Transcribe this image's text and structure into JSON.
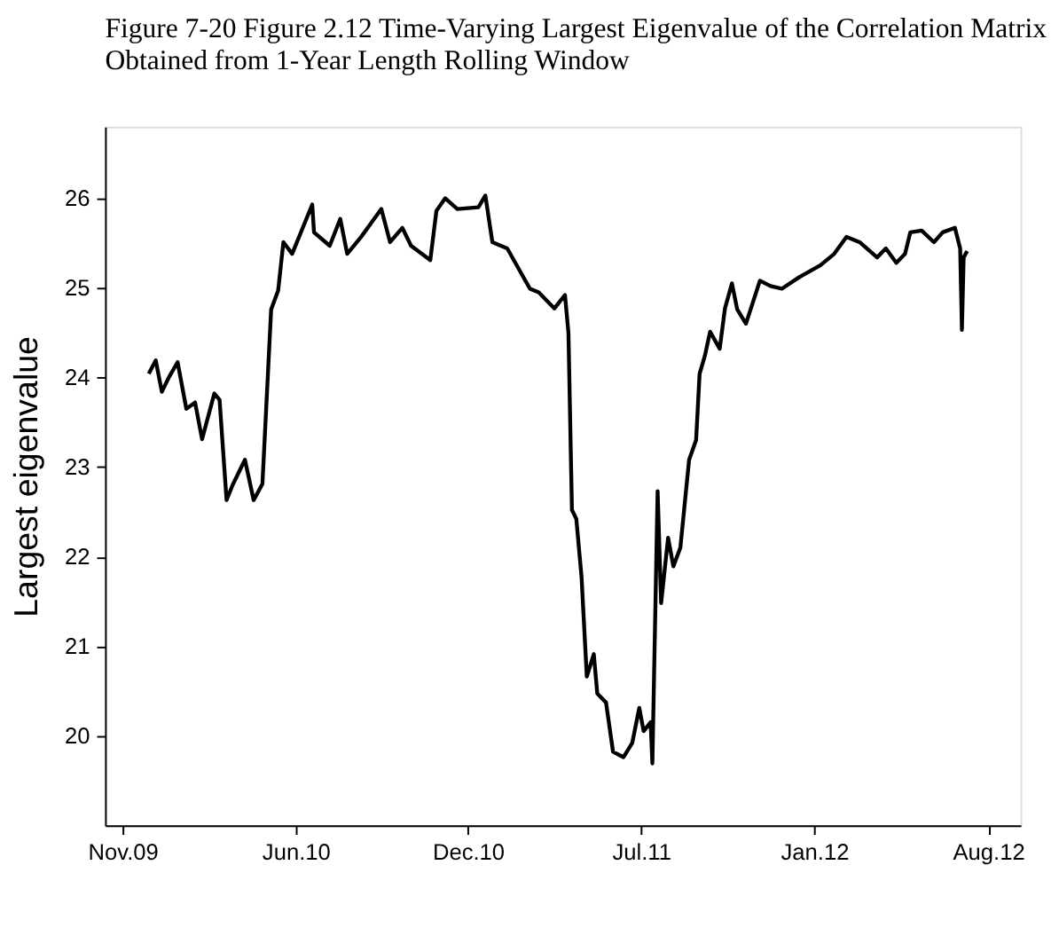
{
  "chart_data": {
    "type": "line",
    "title": [
      "Figure 7-20 Figure 2.12 Time-Varying Largest Eigenvalue of the Correlation Matrix",
      "Obtained from 1-Year Length Rolling Window"
    ],
    "ylabel": "Largest eigenvalue",
    "xlim": [
      "2009-10-26",
      "2012-09-07"
    ],
    "ylim": [
      19,
      26.8
    ],
    "xticks": [
      {
        "value": "2009-11-15",
        "label": "Nov.09"
      },
      {
        "value": "2010-06-01",
        "label": "Jun.10"
      },
      {
        "value": "2010-12-15",
        "label": "Dec.10"
      },
      {
        "value": "2011-07-01",
        "label": "Jul.11"
      },
      {
        "value": "2012-01-15",
        "label": "Jan.12"
      },
      {
        "value": "2012-08-01",
        "label": "Aug.12"
      }
    ],
    "yticks": [
      20,
      21,
      22,
      23,
      24,
      25,
      26
    ],
    "grid": false,
    "marker": "none",
    "line_style": "solid",
    "series": [
      {
        "color": "#000000",
        "x": [
          "2009-12-15",
          "2009-12-23",
          "2009-12-30",
          "2010-01-07",
          "2010-01-17",
          "2010-01-27",
          "2010-02-06",
          "2010-02-14",
          "2010-02-28",
          "2010-03-06",
          "2010-03-14",
          "2010-03-21",
          "2010-04-04",
          "2010-04-14",
          "2010-04-24",
          "2010-05-04",
          "2010-05-12",
          "2010-05-18",
          "2010-05-28",
          "2010-06-20",
          "2010-06-22",
          "2010-07-10",
          "2010-07-22",
          "2010-07-30",
          "2010-08-15",
          "2010-09-07",
          "2010-09-17",
          "2010-10-01",
          "2010-10-11",
          "2010-11-02",
          "2010-11-09",
          "2010-11-19",
          "2010-12-03",
          "2010-12-27",
          "2011-01-04",
          "2011-01-12",
          "2011-01-29",
          "2011-02-24",
          "2011-03-06",
          "2011-03-24",
          "2011-04-05",
          "2011-04-09",
          "2011-04-13",
          "2011-04-18",
          "2011-04-24",
          "2011-04-30",
          "2011-05-08",
          "2011-05-12",
          "2011-05-22",
          "2011-05-30",
          "2011-06-11",
          "2011-06-21",
          "2011-06-29",
          "2011-07-04",
          "2011-07-12",
          "2011-07-14",
          "2011-07-20",
          "2011-07-24",
          "2011-08-01",
          "2011-08-07",
          "2011-08-15",
          "2011-08-25",
          "2011-09-02",
          "2011-09-06",
          "2011-09-12",
          "2011-09-18",
          "2011-09-29",
          "2011-10-05",
          "2011-10-13",
          "2011-10-19",
          "2011-10-29",
          "2011-11-14",
          "2011-11-26",
          "2011-12-09",
          "2011-12-29",
          "2012-01-22",
          "2012-02-07",
          "2012-02-21",
          "2012-03-07",
          "2012-03-27",
          "2012-04-06",
          "2012-04-18",
          "2012-04-28",
          "2012-05-04",
          "2012-05-17",
          "2012-05-31",
          "2012-06-10",
          "2012-06-24",
          "2012-06-30",
          "2012-07-02",
          "2012-07-04",
          "2012-07-08"
        ],
        "values": [
          24.04,
          24.19,
          23.84,
          24.0,
          24.17,
          23.65,
          23.72,
          23.31,
          23.82,
          23.75,
          22.63,
          22.8,
          23.08,
          22.63,
          22.81,
          24.76,
          24.97,
          25.51,
          25.38,
          25.93,
          25.62,
          25.47,
          25.77,
          25.38,
          25.57,
          25.88,
          25.51,
          25.67,
          25.47,
          25.31,
          25.86,
          26.0,
          25.88,
          25.9,
          26.03,
          25.51,
          25.44,
          24.99,
          24.95,
          24.77,
          24.92,
          24.5,
          22.52,
          22.42,
          21.77,
          20.66,
          20.91,
          20.47,
          20.37,
          19.82,
          19.76,
          19.92,
          20.31,
          20.05,
          20.15,
          19.69,
          22.73,
          21.48,
          22.21,
          21.89,
          22.1,
          23.08,
          23.3,
          24.04,
          24.24,
          24.51,
          24.32,
          24.77,
          25.05,
          24.76,
          24.6,
          25.08,
          25.02,
          24.99,
          25.12,
          25.25,
          25.38,
          25.57,
          25.51,
          25.34,
          25.44,
          25.28,
          25.38,
          25.62,
          25.64,
          25.51,
          25.62,
          25.67,
          25.44,
          24.53,
          25.34,
          25.41
        ]
      }
    ]
  }
}
